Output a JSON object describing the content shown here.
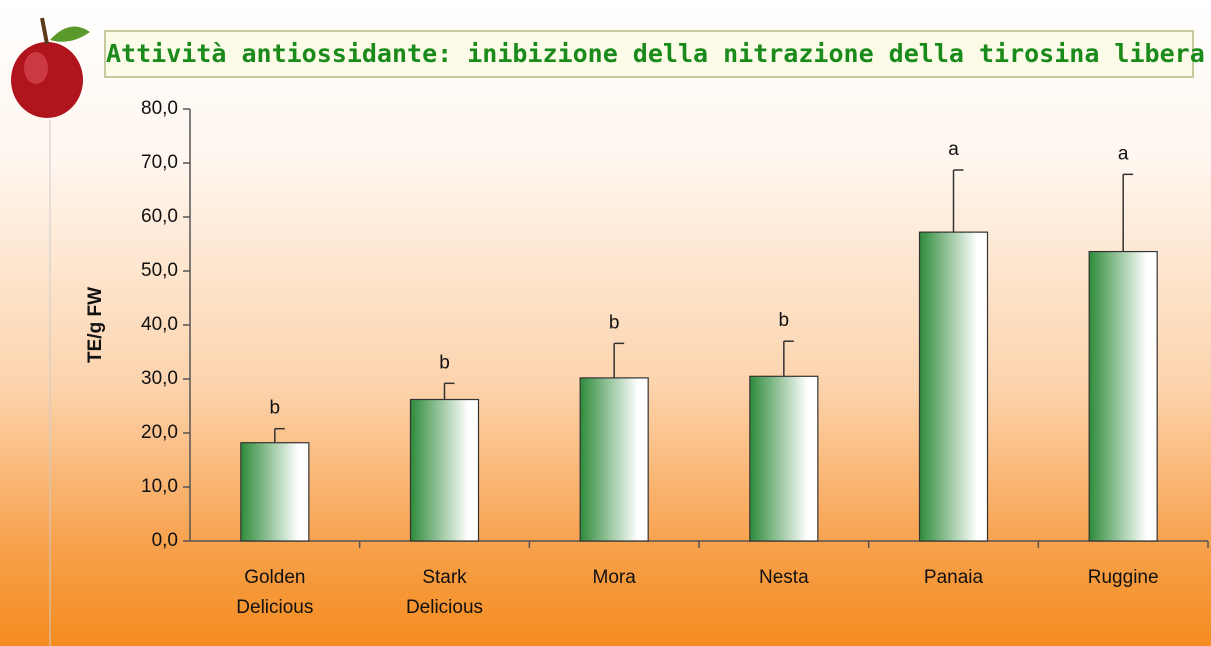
{
  "chart_data": {
    "type": "bar",
    "title": "Attività antiossidante: inibizione della nitrazione della tirosina libera",
    "y_label": "TE/g FW",
    "categories": [
      "Golden Delicious",
      "Stark Delicious",
      "Mora",
      "Nesta",
      "Panaia",
      "Ruggine"
    ],
    "series": [
      {
        "values": [
          18.2,
          26.2,
          30.2,
          30.5,
          57.2,
          53.6
        ],
        "errors": [
          2.6,
          3.0,
          6.4,
          6.5,
          11.5,
          14.3
        ],
        "letters": [
          "b",
          "b",
          "b",
          "b",
          "a",
          "a"
        ],
        "color": "#2e8b3a"
      }
    ],
    "ylim": [
      0,
      80
    ],
    "yticks": [
      {
        "value": 0,
        "label": "0,0"
      },
      {
        "value": 10,
        "label": "10,0"
      },
      {
        "value": 20,
        "label": "20,0"
      },
      {
        "value": 30,
        "label": "30,0"
      },
      {
        "value": 40,
        "label": "40,0"
      },
      {
        "value": 50,
        "label": "50,0"
      },
      {
        "value": 60,
        "label": "60,0"
      },
      {
        "value": 70,
        "label": "70,0"
      },
      {
        "value": 80,
        "label": "80,0"
      }
    ],
    "grid": false
  }
}
